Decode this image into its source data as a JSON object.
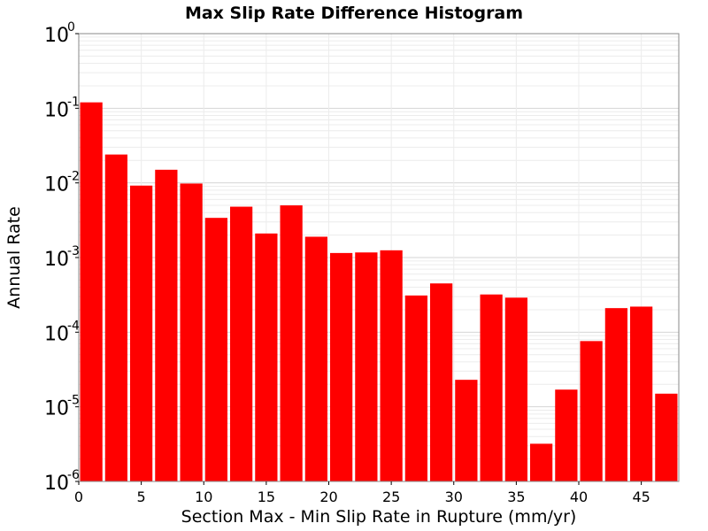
{
  "chart_data": {
    "type": "bar",
    "title": "Max Slip Rate Difference Histogram",
    "xlabel": "Section Max - Min Slip Rate in Rupture (mm/yr)",
    "ylabel": "Annual Rate",
    "y_scale": "log",
    "ylim": [
      1e-06,
      1
    ],
    "xlim": [
      0,
      48
    ],
    "bin_width": 2,
    "bar_color": "#ff0000",
    "grid": true,
    "x_ticks": [
      "0",
      "5",
      "10",
      "15",
      "20",
      "25",
      "30",
      "35",
      "40",
      "45"
    ],
    "x_tick_values": [
      0,
      5,
      10,
      15,
      20,
      25,
      30,
      35,
      40,
      45
    ],
    "y_ticks": [
      {
        "base": "10",
        "exp": "0",
        "value": 1
      },
      {
        "base": "10",
        "exp": "-1",
        "value": 0.1
      },
      {
        "base": "10",
        "exp": "-2",
        "value": 0.01
      },
      {
        "base": "10",
        "exp": "-3",
        "value": 0.001
      },
      {
        "base": "10",
        "exp": "-4",
        "value": 0.0001
      },
      {
        "base": "10",
        "exp": "-5",
        "value": 1e-05
      },
      {
        "base": "10",
        "exp": "-6",
        "value": 1e-06
      }
    ],
    "bins": [
      {
        "x": 1,
        "value": 0.12
      },
      {
        "x": 3,
        "value": 0.024
      },
      {
        "x": 5,
        "value": 0.0092
      },
      {
        "x": 7,
        "value": 0.015
      },
      {
        "x": 9,
        "value": 0.0098
      },
      {
        "x": 11,
        "value": 0.0034
      },
      {
        "x": 13,
        "value": 0.0048
      },
      {
        "x": 15,
        "value": 0.0021
      },
      {
        "x": 17,
        "value": 0.005
      },
      {
        "x": 19,
        "value": 0.0019
      },
      {
        "x": 21,
        "value": 0.00115
      },
      {
        "x": 23,
        "value": 0.00117
      },
      {
        "x": 25,
        "value": 0.00125
      },
      {
        "x": 27,
        "value": 0.00031
      },
      {
        "x": 29,
        "value": 0.00045
      },
      {
        "x": 31,
        "value": 2.3e-05
      },
      {
        "x": 33,
        "value": 0.00032
      },
      {
        "x": 35,
        "value": 0.00029
      },
      {
        "x": 37,
        "value": 3.2e-06
      },
      {
        "x": 39,
        "value": 1.7e-05
      },
      {
        "x": 41,
        "value": 7.6e-05
      },
      {
        "x": 43,
        "value": 0.00021
      },
      {
        "x": 45,
        "value": 0.00022
      },
      {
        "x": 47,
        "value": 1.5e-05
      }
    ]
  }
}
